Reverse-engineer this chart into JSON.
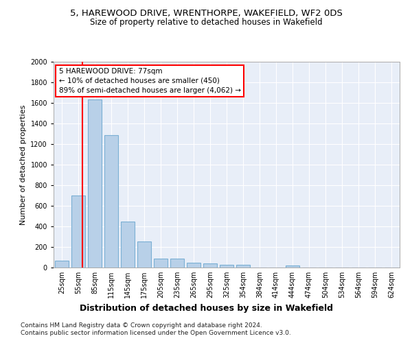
{
  "title": "5, HAREWOOD DRIVE, WRENTHORPE, WAKEFIELD, WF2 0DS",
  "subtitle": "Size of property relative to detached houses in Wakefield",
  "xlabel": "Distribution of detached houses by size in Wakefield",
  "ylabel": "Number of detached properties",
  "categories": [
    "25sqm",
    "55sqm",
    "85sqm",
    "115sqm",
    "145sqm",
    "175sqm",
    "205sqm",
    "235sqm",
    "265sqm",
    "295sqm",
    "325sqm",
    "354sqm",
    "384sqm",
    "414sqm",
    "444sqm",
    "474sqm",
    "504sqm",
    "534sqm",
    "564sqm",
    "594sqm",
    "624sqm"
  ],
  "values": [
    65,
    700,
    1635,
    1285,
    445,
    255,
    90,
    90,
    50,
    40,
    28,
    28,
    0,
    0,
    18,
    0,
    0,
    0,
    0,
    0,
    0
  ],
  "bar_color": "#b8d0e8",
  "bar_edge_color": "#7aafd4",
  "vline_color": "red",
  "annotation_text": "5 HAREWOOD DRIVE: 77sqm\n← 10% of detached houses are smaller (450)\n89% of semi-detached houses are larger (4,062) →",
  "annotation_box_color": "white",
  "annotation_box_edge": "red",
  "ylim": [
    0,
    2000
  ],
  "yticks": [
    0,
    200,
    400,
    600,
    800,
    1000,
    1200,
    1400,
    1600,
    1800,
    2000
  ],
  "footer_line1": "Contains HM Land Registry data © Crown copyright and database right 2024.",
  "footer_line2": "Contains public sector information licensed under the Open Government Licence v3.0.",
  "plot_bg_color": "#e8eef8",
  "grid_color": "white",
  "title_fontsize": 9.5,
  "subtitle_fontsize": 8.5,
  "ylabel_fontsize": 8,
  "xlabel_fontsize": 9,
  "tick_fontsize": 7,
  "footer_fontsize": 6.5,
  "annotation_fontsize": 7.5
}
